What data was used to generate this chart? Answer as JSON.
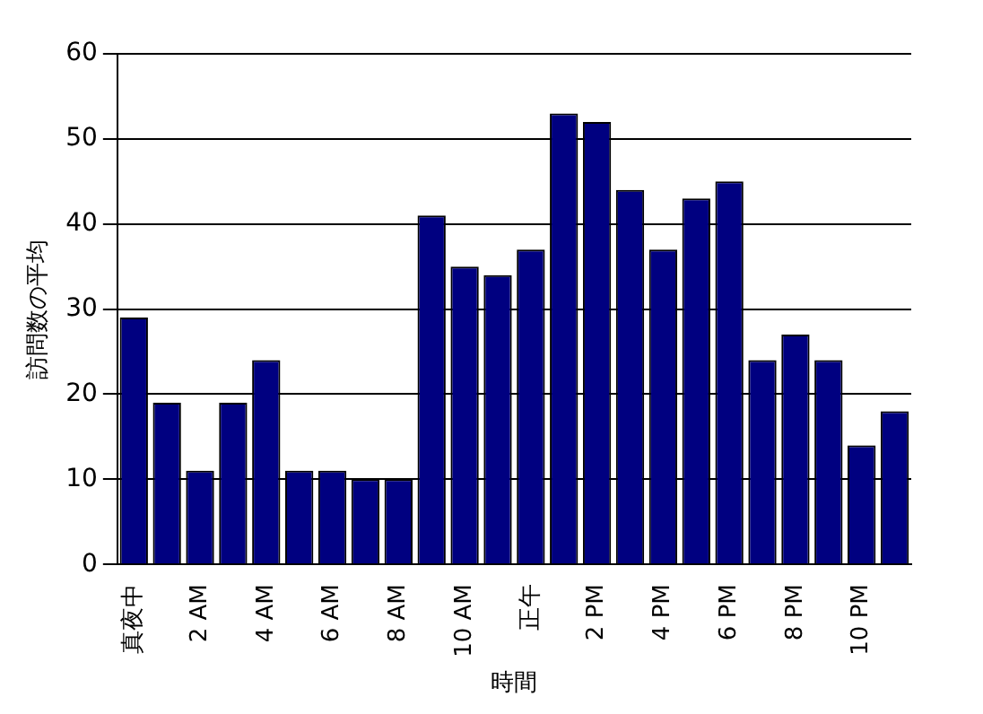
{
  "chart_data": {
    "type": "bar",
    "xlabel": "時間",
    "ylabel": "訪問数の平均",
    "categories": [
      "真夜中",
      null,
      "2 AM",
      null,
      "4 AM",
      null,
      "6 AM",
      null,
      "8 AM",
      null,
      "10 AM",
      null,
      "正午",
      null,
      "2 PM",
      null,
      "4 PM",
      null,
      "6 PM",
      null,
      "8 PM",
      null,
      "10 PM",
      null
    ],
    "values": [
      29,
      19,
      11,
      19,
      24,
      11,
      11,
      10,
      10,
      41,
      35,
      34,
      37,
      53,
      52,
      44,
      37,
      43,
      45,
      24,
      27,
      24,
      14,
      18
    ],
    "color": "#000080",
    "ylim": [
      0,
      60
    ],
    "yticks": [
      0,
      10,
      20,
      30,
      40,
      50,
      60
    ],
    "grid": "y",
    "legend": false
  }
}
